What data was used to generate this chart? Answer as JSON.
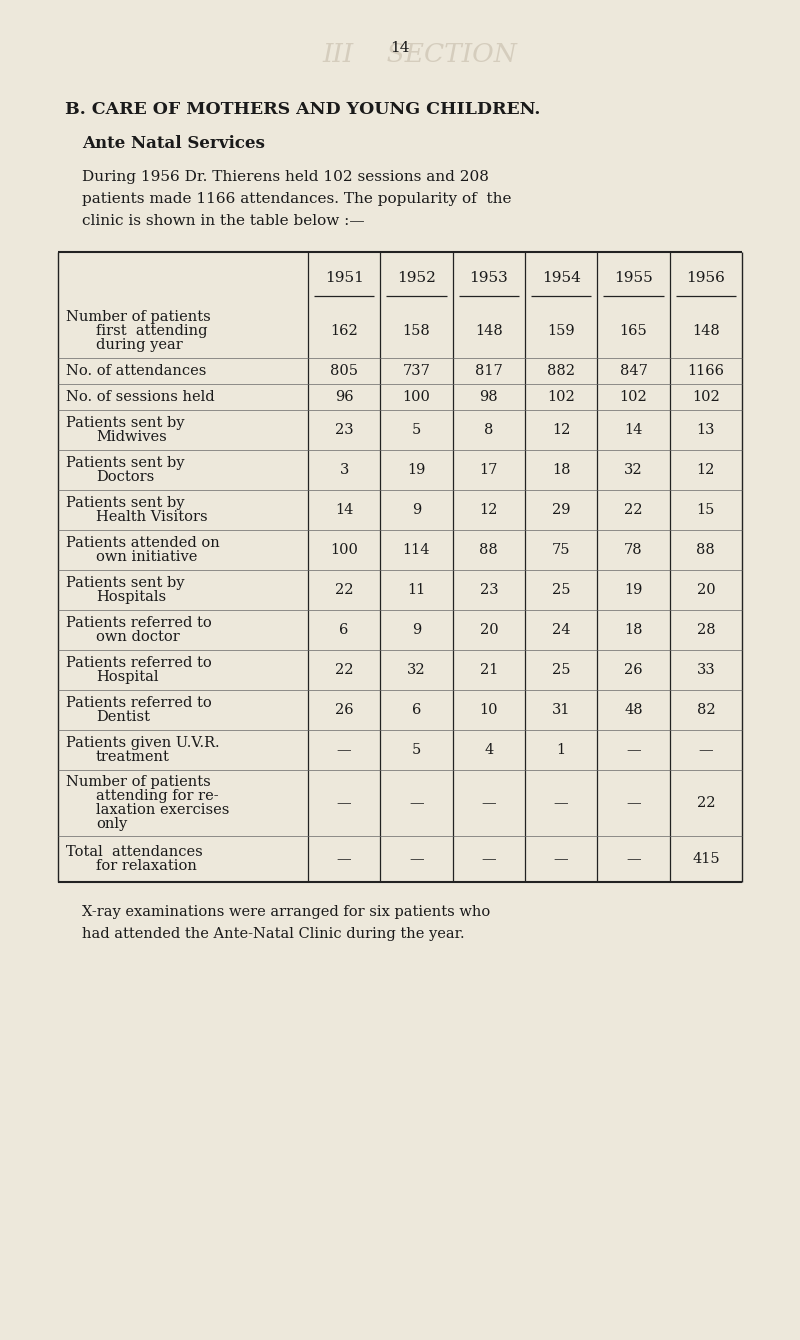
{
  "page_number": "14",
  "heading": "B. CARE OF MOTHERS AND YOUNG CHILDREN.",
  "subheading": "Ante Natal Services",
  "para_lines": [
    "During 1956 Dr. Thierens held 102 sessions and 208",
    "patients made 1166 attendances. The popularity of  the",
    "clinic is shown in the table below :—"
  ],
  "years": [
    "1951",
    "1952",
    "1953",
    "1954",
    "1955",
    "1956"
  ],
  "rows": [
    {
      "label_lines": [
        "Number of patients",
        "first  attending",
        "during year"
      ],
      "values": [
        "162",
        "158",
        "148",
        "159",
        "165",
        "148"
      ]
    },
    {
      "label_lines": [
        "No. of attendances"
      ],
      "values": [
        "805",
        "737",
        "817",
        "882",
        "847",
        "1166"
      ]
    },
    {
      "label_lines": [
        "No. of sessions held"
      ],
      "values": [
        "96",
        "100",
        "98",
        "102",
        "102",
        "102"
      ]
    },
    {
      "label_lines": [
        "Patients sent by",
        "Midwives"
      ],
      "values": [
        "23",
        "5",
        "8",
        "12",
        "14",
        "13"
      ]
    },
    {
      "label_lines": [
        "Patients sent by",
        "Doctors"
      ],
      "values": [
        "3",
        "19",
        "17",
        "18",
        "32",
        "12"
      ]
    },
    {
      "label_lines": [
        "Patients sent by",
        "Health Visitors"
      ],
      "values": [
        "14",
        "9",
        "12",
        "29",
        "22",
        "15"
      ]
    },
    {
      "label_lines": [
        "Patients attended on",
        "own initiative"
      ],
      "values": [
        "100",
        "114",
        "88",
        "75",
        "78",
        "88"
      ]
    },
    {
      "label_lines": [
        "Patients sent by",
        "Hospitals"
      ],
      "values": [
        "22",
        "11",
        "23",
        "25",
        "19",
        "20"
      ]
    },
    {
      "label_lines": [
        "Patients referred to",
        "own doctor"
      ],
      "values": [
        "6",
        "9",
        "20",
        "24",
        "18",
        "28"
      ]
    },
    {
      "label_lines": [
        "Patients referred to",
        "Hospital"
      ],
      "values": [
        "22",
        "32",
        "21",
        "25",
        "26",
        "33"
      ]
    },
    {
      "label_lines": [
        "Patients referred to",
        "Dentist"
      ],
      "values": [
        "26",
        "6",
        "10",
        "31",
        "48",
        "82"
      ]
    },
    {
      "label_lines": [
        "Patients given U.V.R.",
        "treatment"
      ],
      "values": [
        "—",
        "5",
        "4",
        "1",
        "—",
        "—"
      ]
    },
    {
      "label_lines": [
        "Number of patients",
        "attending for re-",
        "laxation exercises",
        "only"
      ],
      "values": [
        "—",
        "—",
        "—",
        "—",
        "—",
        "22"
      ]
    },
    {
      "label_lines": [
        "Total  attendances",
        "for relaxation"
      ],
      "values": [
        "—",
        "—",
        "—",
        "—",
        "—",
        "415"
      ]
    }
  ],
  "footnote_lines": [
    "X-ray examinations were arranged for six patients who",
    "had attended the Ante-Natal Clinic during the year."
  ],
  "bg_color": "#ede8db",
  "text_color": "#1a1a1a",
  "line_color": "#222222",
  "bleed_color": "#c5bbaa"
}
